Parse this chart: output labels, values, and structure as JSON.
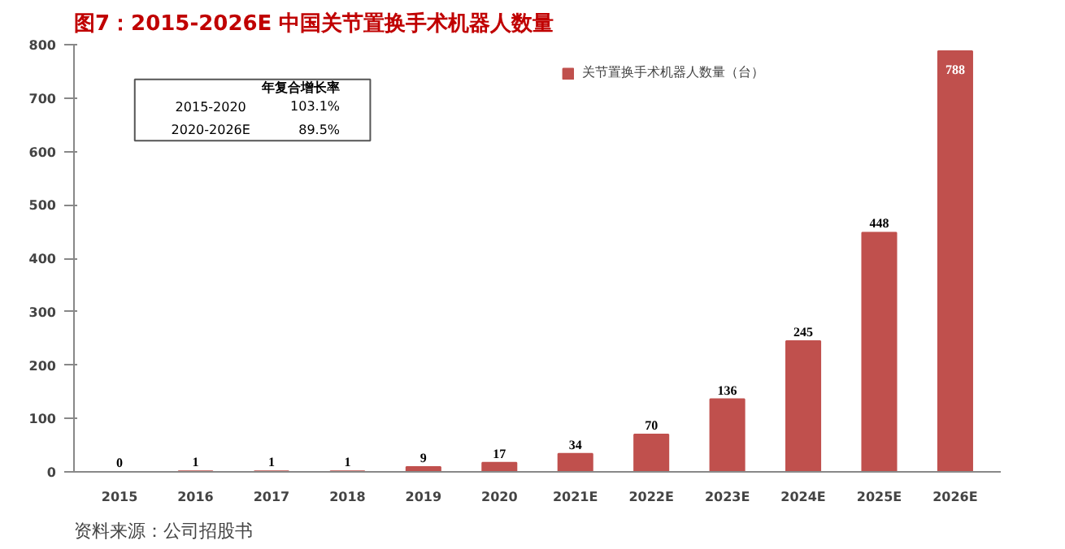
{
  "chart_data": {
    "type": "bar",
    "title": "图7：2015-2026E 中国关节置换手术机器人数量",
    "categories": [
      "2015",
      "2016",
      "2017",
      "2018",
      "2019",
      "2020",
      "2021E",
      "2022E",
      "2023E",
      "2024E",
      "2025E",
      "2026E"
    ],
    "series": [
      {
        "name": "关节置换手术机器人数量（台）",
        "color": "#c0504d",
        "values": [
          0,
          1,
          1,
          1,
          9,
          17,
          34,
          70,
          136,
          245,
          448,
          788
        ]
      }
    ],
    "ylim": [
      0,
      800
    ],
    "yticks": [
      0,
      100,
      200,
      300,
      400,
      500,
      600,
      700,
      800
    ],
    "grid": false,
    "legend": "top right",
    "data_labels": true,
    "annotations": [
      "年复合增长率",
      "2015-2020",
      "103.1%",
      "2020-2026E",
      "89.5%",
      "资料来源：公司招股书"
    ]
  }
}
